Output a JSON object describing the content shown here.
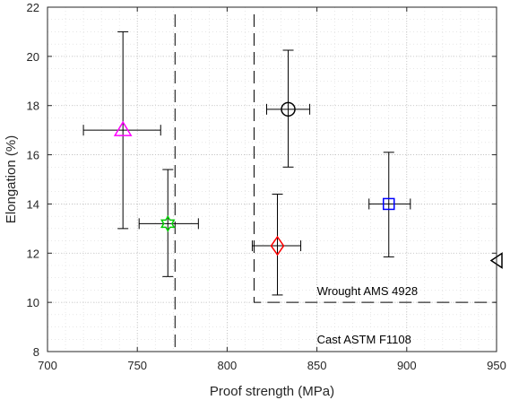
{
  "chart_data": {
    "type": "scatter",
    "title": "",
    "xlabel": "Proof strength (MPa)",
    "ylabel": "Elongation (%)",
    "xlim": [
      700,
      950
    ],
    "ylim": [
      8,
      22
    ],
    "xticks": [
      700,
      750,
      800,
      850,
      900,
      950
    ],
    "yticks": [
      8,
      10,
      12,
      14,
      16,
      18,
      20,
      22
    ],
    "xtick_labels": [
      "700",
      "750",
      "800",
      "850",
      "900",
      "950"
    ],
    "ytick_labels": [
      "8",
      "10",
      "12",
      "14",
      "16",
      "18",
      "20",
      "22"
    ],
    "grid": "dotted major and minor",
    "series": [
      {
        "marker": "triangle-up",
        "color": "#ff00ff",
        "x": 742,
        "y": 17.0,
        "xerr": [
          720,
          763
        ],
        "yerr": [
          13.0,
          21.0
        ]
      },
      {
        "marker": "hexagram",
        "color": "#00cc00",
        "x": 767,
        "y": 13.2,
        "xerr": [
          751,
          784
        ],
        "yerr": [
          11.05,
          15.4
        ]
      },
      {
        "marker": "circle",
        "color": "#000000",
        "x": 834,
        "y": 17.85,
        "xerr": [
          822,
          846
        ],
        "yerr": [
          15.5,
          20.25
        ]
      },
      {
        "marker": "diamond",
        "color": "#ff0000",
        "x": 828,
        "y": 12.3,
        "xerr": [
          814,
          841
        ],
        "yerr": [
          10.3,
          14.4
        ]
      },
      {
        "marker": "square",
        "color": "#0000ff",
        "x": 890,
        "y": 14.0,
        "xerr": [
          879,
          902
        ],
        "yerr": [
          11.85,
          16.1
        ]
      },
      {
        "marker": "triangle-left",
        "color": "#000000",
        "x": 950,
        "y": 11.7
      }
    ],
    "thresholds": [
      {
        "label": "Wrought AMS 4928",
        "x_min": 815,
        "y_min": 10,
        "style": "dashed"
      },
      {
        "label": "Cast ASTM F1108",
        "x_min": 771,
        "y_min": 8,
        "style": "dashed"
      }
    ]
  }
}
